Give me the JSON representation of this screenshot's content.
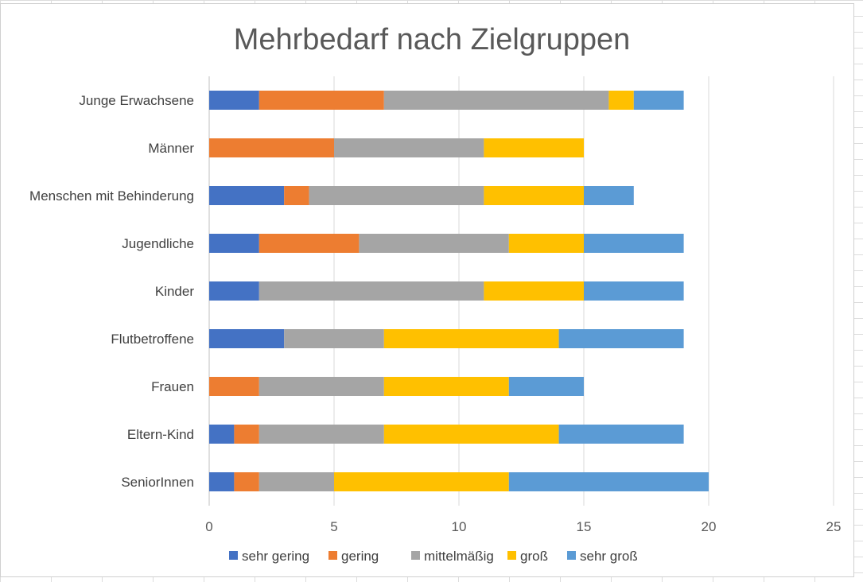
{
  "chart_data": {
    "type": "bar",
    "orientation": "horizontal",
    "stacked": true,
    "title": "Mehrbedarf nach Zielgruppen",
    "categories": [
      "Junge Erwachsene",
      "Männer",
      "Menschen mit Behinderung",
      "Jugendliche",
      "Kinder",
      "Flutbetroffene",
      "Frauen",
      "Eltern-Kind",
      "SeniorInnen"
    ],
    "series": [
      {
        "name": "sehr gering",
        "color": "#4472C4",
        "values": [
          2,
          0,
          3,
          2,
          2,
          3,
          0,
          1,
          1
        ]
      },
      {
        "name": "gering",
        "color": "#ED7D31",
        "values": [
          5,
          5,
          1,
          4,
          0,
          0,
          2,
          1,
          1
        ]
      },
      {
        "name": "mittelmäßig",
        "color": "#A5A5A5",
        "values": [
          9,
          6,
          7,
          6,
          9,
          4,
          5,
          5,
          3
        ]
      },
      {
        "name": "groß",
        "color": "#FFC000",
        "values": [
          1,
          4,
          4,
          3,
          4,
          7,
          5,
          7,
          7
        ]
      },
      {
        "name": "sehr groß",
        "color": "#5B9BD5",
        "values": [
          2,
          0,
          2,
          4,
          4,
          5,
          3,
          5,
          8
        ]
      }
    ],
    "xlim": [
      0,
      25
    ],
    "xticks": [
      0,
      5,
      10,
      15,
      20,
      25
    ],
    "grid": true,
    "legend_position": "bottom"
  }
}
